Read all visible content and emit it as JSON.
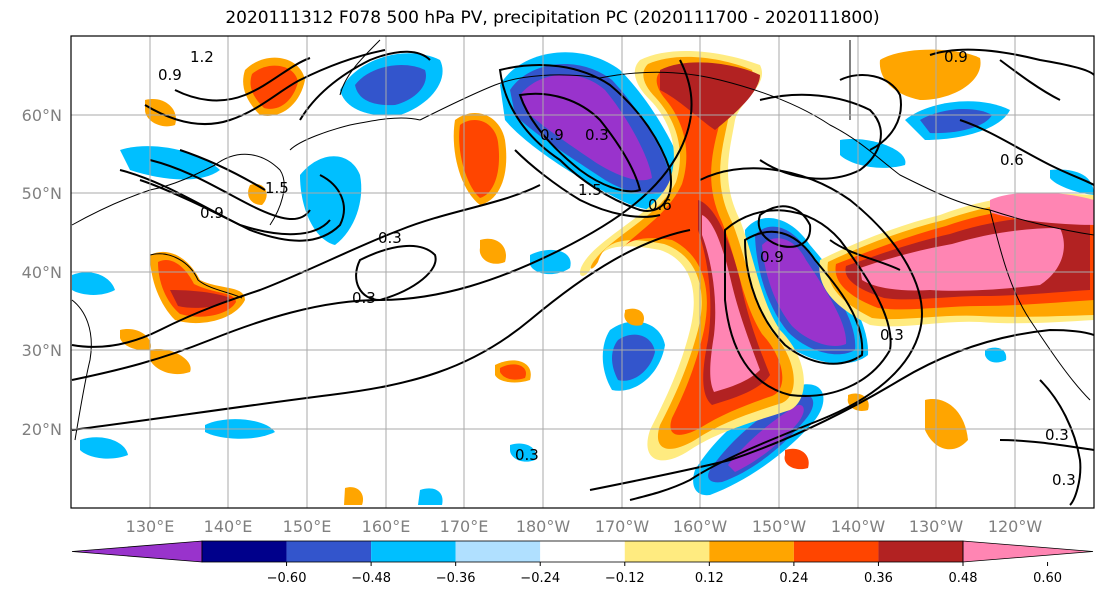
{
  "title": "2020111312 F078 500 hPa PV, precipitation PC (2020111700 - 2020111800)",
  "map": {
    "lon_labels": [
      "130°E",
      "140°E",
      "150°E",
      "160°E",
      "170°E",
      "180°W",
      "170°W",
      "160°W",
      "150°W",
      "140°W",
      "130°W",
      "120°W"
    ],
    "lat_labels": [
      "60°N",
      "50°N",
      "40°N",
      "30°N",
      "20°N"
    ],
    "contour_labels": [
      "1.2",
      "0.9",
      "1.5",
      "0.9",
      "0.3",
      "0.3",
      "0.9",
      "0.3",
      "0.6",
      "1.5",
      "0.9",
      "0.6",
      "0.3",
      "0.3",
      "0.3",
      "0.3",
      "0.9"
    ]
  },
  "colorbar": {
    "ticks": [
      "−0.60",
      "−0.48",
      "−0.36",
      "−0.24",
      "−0.12",
      "0.12",
      "0.24",
      "0.36",
      "0.48",
      "0.60"
    ],
    "colors": [
      "#9933cc",
      "#00008b",
      "#3355cc",
      "#00bfff",
      "#b0e0ff",
      "#ffffff",
      "#ffeb80",
      "#ffa500",
      "#ff4500",
      "#b22222",
      "#ff85b3"
    ]
  }
}
